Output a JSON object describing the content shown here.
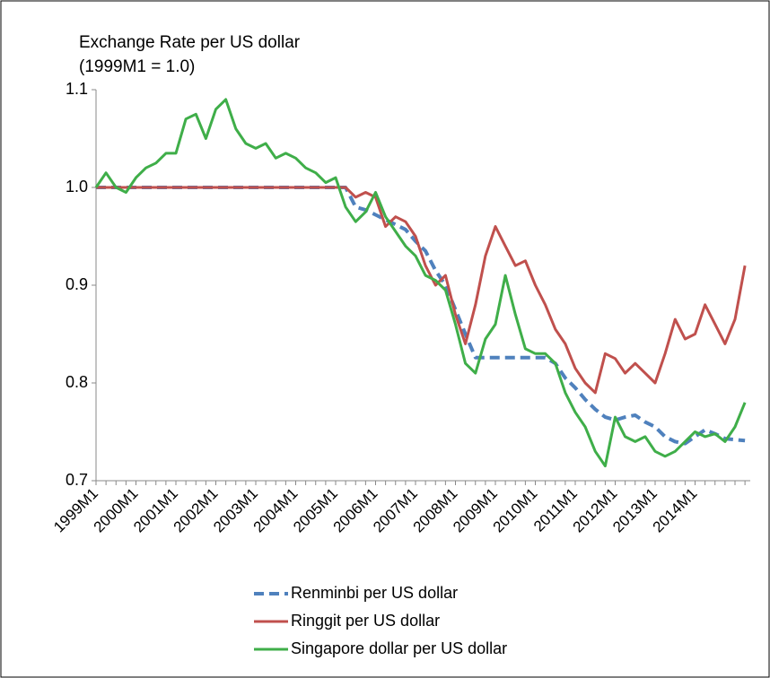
{
  "chart_data": {
    "type": "line",
    "title": "Exchange Rate per US dollar",
    "subtitle": "(1999M1 = 1.0)",
    "categories": [
      "1999M1",
      null,
      null,
      null,
      "2000M1",
      null,
      null,
      null,
      "2001M1",
      null,
      null,
      null,
      "2002M1",
      null,
      null,
      null,
      "2003M1",
      null,
      null,
      null,
      "2004M1",
      null,
      null,
      null,
      "2005M1",
      null,
      null,
      null,
      "2006M1",
      null,
      null,
      null,
      "2007M1",
      null,
      null,
      null,
      "2008M1",
      null,
      null,
      null,
      "2009M1",
      null,
      null,
      null,
      "2010M1",
      null,
      null,
      null,
      "2011M1",
      null,
      null,
      null,
      "2012M1",
      null,
      null,
      null,
      "2013M1",
      null,
      null,
      null,
      "2014M1",
      null,
      null,
      null,
      null,
      null
    ],
    "series": [
      {
        "name": "Renminbi per US dollar",
        "color": "#4f81bd",
        "dashed": true,
        "values": [
          1.0,
          1.0,
          1.0,
          1.0,
          1.0,
          1.0,
          1.0,
          1.0,
          1.0,
          1.0,
          1.0,
          1.0,
          1.0,
          1.0,
          1.0,
          1.0,
          1.0,
          1.0,
          1.0,
          1.0,
          1.0,
          1.0,
          1.0,
          1.0,
          1.0,
          1.0,
          0.98,
          0.977,
          0.972,
          0.967,
          0.962,
          0.957,
          0.945,
          0.935,
          0.915,
          0.9,
          0.875,
          0.85,
          0.826,
          0.826,
          0.826,
          0.826,
          0.826,
          0.826,
          0.826,
          0.826,
          0.82,
          0.805,
          0.795,
          0.783,
          0.773,
          0.765,
          0.762,
          0.765,
          0.767,
          0.76,
          0.755,
          0.745,
          0.74,
          0.738,
          0.745,
          0.752,
          0.748,
          0.743,
          0.742,
          0.741
        ]
      },
      {
        "name": "Ringgit per US dollar",
        "color": "#c0504d",
        "dashed": false,
        "values": [
          1.0,
          1.0,
          1.0,
          1.0,
          1.0,
          1.0,
          1.0,
          1.0,
          1.0,
          1.0,
          1.0,
          1.0,
          1.0,
          1.0,
          1.0,
          1.0,
          1.0,
          1.0,
          1.0,
          1.0,
          1.0,
          1.0,
          1.0,
          1.0,
          1.0,
          1.0,
          0.99,
          0.995,
          0.99,
          0.96,
          0.97,
          0.965,
          0.95,
          0.92,
          0.9,
          0.91,
          0.87,
          0.84,
          0.88,
          0.93,
          0.96,
          0.94,
          0.92,
          0.925,
          0.9,
          0.88,
          0.855,
          0.84,
          0.815,
          0.8,
          0.79,
          0.83,
          0.825,
          0.81,
          0.82,
          0.81,
          0.8,
          0.83,
          0.865,
          0.845,
          0.85,
          0.88,
          0.86,
          0.84,
          0.865,
          0.92
        ]
      },
      {
        "name": "Singapore dollar per US dollar",
        "color": "#3fae49",
        "dashed": false,
        "values": [
          1.0,
          1.015,
          1.0,
          0.995,
          1.01,
          1.02,
          1.025,
          1.035,
          1.035,
          1.07,
          1.075,
          1.05,
          1.08,
          1.09,
          1.06,
          1.045,
          1.04,
          1.045,
          1.03,
          1.035,
          1.03,
          1.02,
          1.015,
          1.005,
          1.01,
          0.98,
          0.965,
          0.975,
          0.995,
          0.97,
          0.955,
          0.94,
          0.93,
          0.91,
          0.905,
          0.895,
          0.86,
          0.82,
          0.81,
          0.845,
          0.86,
          0.91,
          0.87,
          0.835,
          0.83,
          0.83,
          0.82,
          0.79,
          0.77,
          0.755,
          0.73,
          0.715,
          0.765,
          0.745,
          0.74,
          0.745,
          0.73,
          0.725,
          0.73,
          0.74,
          0.75,
          0.745,
          0.748,
          0.74,
          0.755,
          0.78
        ]
      }
    ],
    "ylim": [
      0.7,
      1.1
    ],
    "yticks": [
      0.7,
      0.8,
      0.9,
      {
        "value": 1,
        "label": "1.0"
      },
      1.1
    ],
    "grid": false,
    "legend": "bottom"
  }
}
